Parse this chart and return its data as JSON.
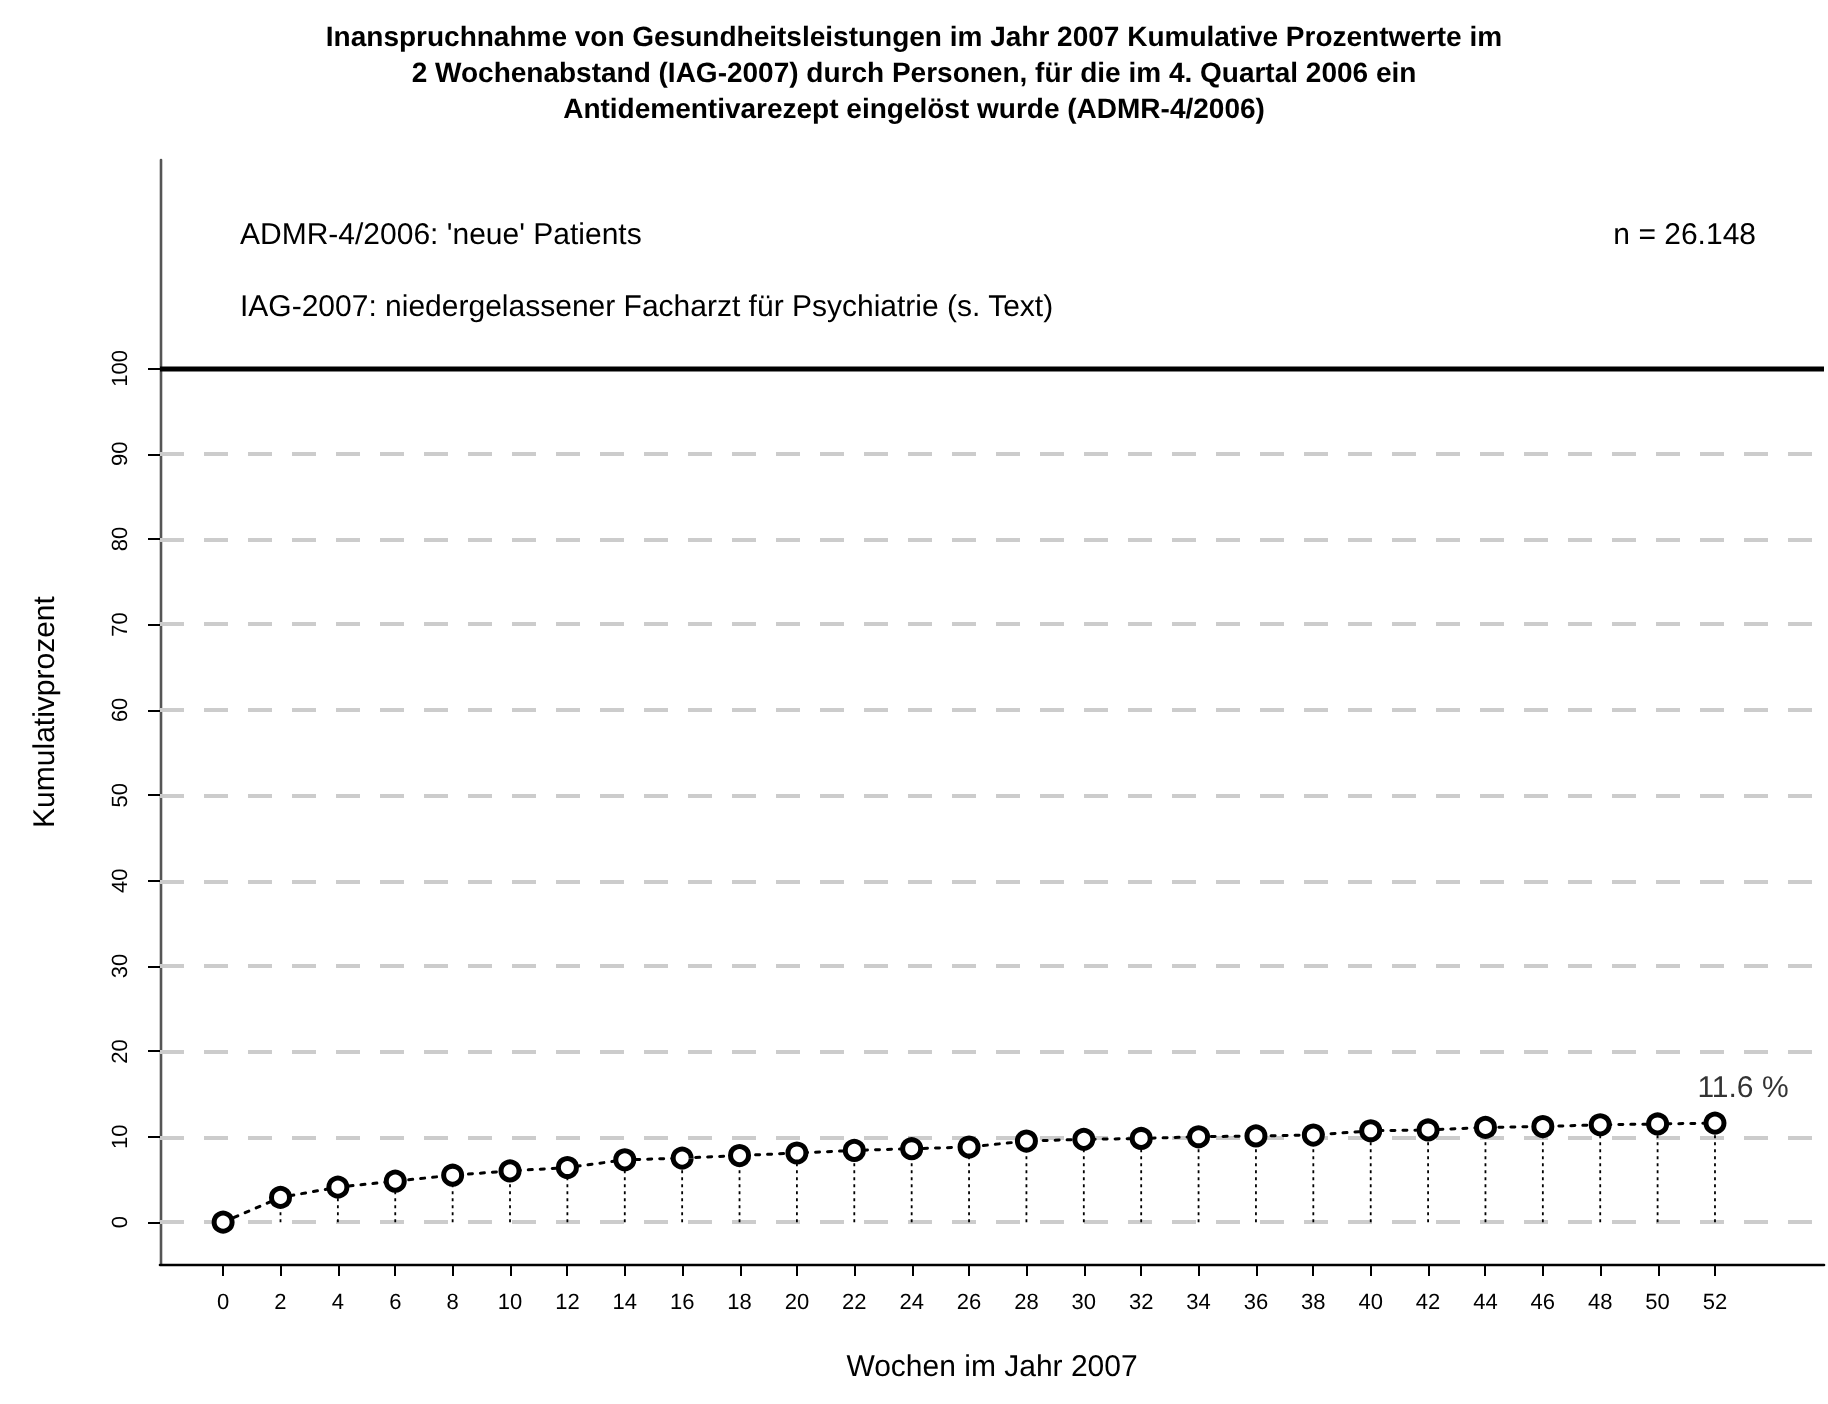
{
  "chart_data": {
    "type": "line",
    "title": "Inanspruchnahme von Gesundheitsleistungen im Jahr 2007 Kumulative Prozentwerte im\n2 Wochenabstand (IAG-2007) durch Personen, für die im 4. Quartal 2006 ein\nAntidementivarezept eingelöst wurde (ADMR-4/2006)",
    "xlabel": "Wochen im Jahr 2007",
    "ylabel": "Kumulativprozent",
    "x": [
      0,
      2,
      4,
      6,
      8,
      10,
      12,
      14,
      16,
      18,
      20,
      22,
      24,
      26,
      28,
      30,
      32,
      34,
      36,
      38,
      40,
      42,
      44,
      46,
      48,
      50,
      52
    ],
    "series": [
      {
        "marker": "none",
        "color": "#000000",
        "values": [
          0,
          2.9,
          4.1,
          4.8,
          5.5,
          6.0,
          6.4,
          7.3,
          7.5,
          7.8,
          8.1,
          8.4,
          8.6,
          8.8,
          9.5,
          9.7,
          9.8,
          10.0,
          10.1,
          10.2,
          10.7,
          10.8,
          11.1,
          11.2,
          11.4,
          11.5,
          11.6
        ]
      },
      {
        "type": "lollipop",
        "color": "#000000",
        "values": [
          0,
          2.9,
          4.1,
          4.8,
          5.5,
          6.0,
          6.4,
          7.3,
          7.5,
          7.8,
          8.1,
          8.4,
          8.6,
          8.8,
          9.5,
          9.7,
          9.8,
          10.0,
          10.1,
          10.2,
          10.7,
          10.8,
          11.1,
          11.2,
          11.4,
          11.5,
          11.6
        ]
      }
    ],
    "marker": "circle",
    "line_style": "dotted",
    "xlim": [
      -2.2,
      55.8
    ],
    "xticks": [
      0,
      2,
      4,
      6,
      8,
      10,
      12,
      14,
      16,
      18,
      20,
      22,
      24,
      26,
      28,
      30,
      32,
      34,
      36,
      38,
      40,
      42,
      44,
      46,
      48,
      50,
      52
    ],
    "ylim": [
      -4.9,
      124.4
    ],
    "yticks": [
      0,
      10,
      20,
      30,
      40,
      50,
      60,
      70,
      80,
      90,
      100
    ],
    "grid": "y",
    "ref_lines": [
      {
        "axis": "y",
        "value": 100,
        "color": "#000000",
        "line_style": "solid"
      }
    ],
    "annotations": [
      "ADMR-4/2006: 'neue' Patients",
      "IAG-2007: niedergelassener Facharzt für Psychiatrie (s. Text)",
      "n = 26.148",
      {
        "text": "11.6 %",
        "x": 52,
        "y": 11.6
      }
    ]
  }
}
